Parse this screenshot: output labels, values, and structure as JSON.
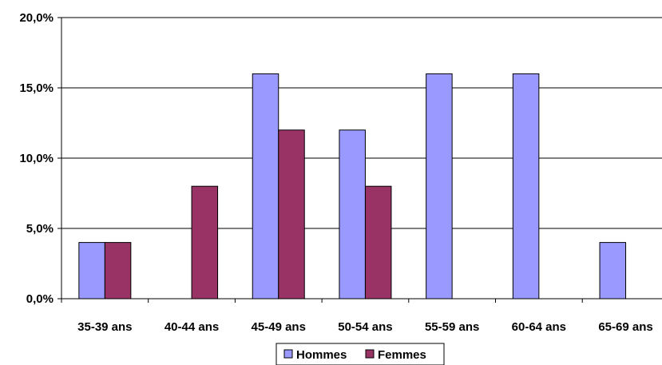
{
  "chart_data": {
    "type": "bar",
    "categories": [
      "35-39 ans",
      "40-44 ans",
      "45-49 ans",
      "50-54 ans",
      "55-59 ans",
      "60-64 ans",
      "65-69 ans"
    ],
    "series": [
      {
        "name": "Hommes",
        "values": [
          4,
          0,
          16,
          12,
          16,
          16,
          4
        ],
        "color": "#9999ff"
      },
      {
        "name": "Femmes",
        "values": [
          4,
          8,
          12,
          8,
          0,
          0,
          0
        ],
        "color": "#993366"
      }
    ],
    "yticks": [
      "0,0%",
      "5,0%",
      "10,0%",
      "15,0%",
      "20,0%"
    ],
    "ylim": [
      0,
      20
    ],
    "grid": true,
    "legend": "bottom"
  }
}
